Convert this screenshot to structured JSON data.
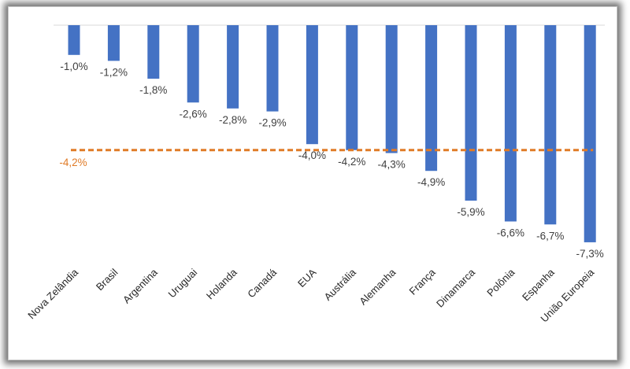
{
  "chart_data": {
    "type": "bar",
    "title": "",
    "xlabel": "",
    "ylabel": "",
    "categories": [
      "Nova Zelândia",
      "Brasil",
      "Argentina",
      "Uruguai",
      "Holanda",
      "Canadá",
      "EUA",
      "Austrália",
      "Alemanha",
      "França",
      "Dinamarca",
      "Polônia",
      "Espanha",
      "União Europeia"
    ],
    "values": [
      -1.0,
      -1.2,
      -1.8,
      -2.6,
      -2.8,
      -2.9,
      -4.0,
      -4.2,
      -4.3,
      -4.9,
      -5.9,
      -6.6,
      -6.7,
      -7.3
    ],
    "value_labels": [
      "-1,0%",
      "-1,2%",
      "-1,8%",
      "-2,6%",
      "-2,8%",
      "-2,9%",
      "-4,0%",
      "-4,2%",
      "-4,3%",
      "-4,9%",
      "-5,9%",
      "-6,6%",
      "-6,7%",
      "-7,3%"
    ],
    "average": {
      "value": -4.2,
      "label": "-4,2%"
    },
    "ylim": [
      -7.3,
      0
    ],
    "bar_color": "#4472c4",
    "average_color": "#e07b27",
    "axis_color": "#d9d9d9"
  }
}
